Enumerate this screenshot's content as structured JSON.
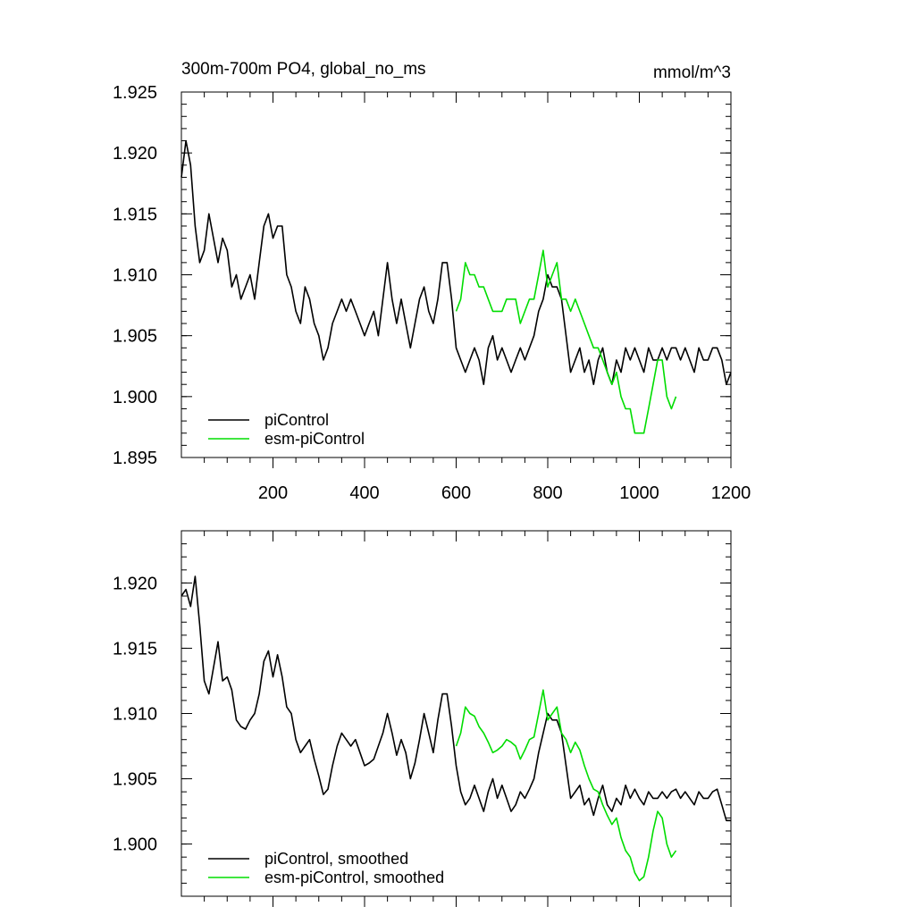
{
  "chart_data": [
    {
      "type": "line",
      "title": "300m-700m PO4, global_no_ms",
      "units": "mmol/m^3",
      "xlim": [
        0,
        1200
      ],
      "ylim": [
        1.895,
        1.925
      ],
      "xticks": [
        200,
        400,
        600,
        800,
        1000,
        1200
      ],
      "xtick_labels": [
        "200",
        "400",
        "600",
        "800",
        "1000",
        "1200"
      ],
      "yticks": [
        1.895,
        1.9,
        1.905,
        1.91,
        1.915,
        1.92,
        1.925
      ],
      "ytick_labels": [
        "1.895",
        "1.900",
        "1.905",
        "1.910",
        "1.915",
        "1.920",
        "1.925"
      ],
      "legend_position": "bottom-left",
      "series": [
        {
          "name": "piControl",
          "color": "#000000",
          "x": [
            0,
            10,
            20,
            30,
            40,
            50,
            60,
            70,
            80,
            90,
            100,
            110,
            120,
            130,
            140,
            150,
            160,
            170,
            180,
            190,
            200,
            210,
            220,
            230,
            240,
            250,
            260,
            270,
            280,
            290,
            300,
            310,
            320,
            330,
            340,
            350,
            360,
            370,
            380,
            390,
            400,
            410,
            420,
            430,
            440,
            450,
            460,
            470,
            480,
            490,
            500,
            510,
            520,
            530,
            540,
            550,
            560,
            570,
            580,
            590,
            600,
            610,
            620,
            630,
            640,
            650,
            660,
            670,
            680,
            690,
            700,
            710,
            720,
            730,
            740,
            750,
            760,
            770,
            780,
            790,
            800,
            810,
            820,
            830,
            840,
            850,
            860,
            870,
            880,
            890,
            900,
            910,
            920,
            930,
            940,
            950,
            960,
            970,
            980,
            990,
            1000,
            1010,
            1020,
            1030,
            1040,
            1050,
            1060,
            1070,
            1080,
            1090,
            1100,
            1110,
            1120,
            1130,
            1140,
            1150,
            1160,
            1170,
            1180,
            1190,
            1200
          ],
          "y": [
            1.918,
            1.921,
            1.919,
            1.914,
            1.911,
            1.912,
            1.915,
            1.913,
            1.911,
            1.913,
            1.912,
            1.909,
            1.91,
            1.908,
            1.909,
            1.91,
            1.908,
            1.911,
            1.914,
            1.915,
            1.913,
            1.914,
            1.914,
            1.91,
            1.909,
            1.907,
            1.906,
            1.909,
            1.908,
            1.906,
            1.905,
            1.903,
            1.904,
            1.906,
            1.907,
            1.908,
            1.907,
            1.908,
            1.907,
            1.906,
            1.905,
            1.906,
            1.907,
            1.905,
            1.908,
            1.911,
            1.908,
            1.906,
            1.908,
            1.906,
            1.904,
            1.906,
            1.908,
            1.909,
            1.907,
            1.906,
            1.908,
            1.911,
            1.911,
            1.908,
            1.904,
            1.903,
            1.902,
            1.903,
            1.904,
            1.903,
            1.901,
            1.904,
            1.905,
            1.903,
            1.904,
            1.903,
            1.902,
            1.903,
            1.904,
            1.903,
            1.904,
            1.905,
            1.907,
            1.908,
            1.91,
            1.909,
            1.909,
            1.908,
            1.905,
            1.902,
            1.903,
            1.904,
            1.902,
            1.903,
            1.901,
            1.903,
            1.904,
            1.902,
            1.901,
            1.903,
            1.902,
            1.904,
            1.903,
            1.904,
            1.903,
            1.902,
            1.904,
            1.903,
            1.903,
            1.904,
            1.903,
            1.904,
            1.904,
            1.903,
            1.904,
            1.903,
            1.902,
            1.904,
            1.903,
            1.903,
            1.904,
            1.904,
            1.903,
            1.901,
            1.902
          ]
        },
        {
          "name": "esm-piControl",
          "color": "#00dd00",
          "x": [
            600,
            610,
            620,
            630,
            640,
            650,
            660,
            670,
            680,
            690,
            700,
            710,
            720,
            730,
            740,
            750,
            760,
            770,
            780,
            790,
            800,
            810,
            820,
            830,
            840,
            850,
            860,
            870,
            880,
            890,
            900,
            910,
            920,
            930,
            940,
            950,
            960,
            970,
            980,
            990,
            1000,
            1010,
            1020,
            1030,
            1040,
            1050,
            1060,
            1070,
            1080
          ],
          "y": [
            1.907,
            1.908,
            1.911,
            1.91,
            1.91,
            1.909,
            1.909,
            1.908,
            1.907,
            1.907,
            1.907,
            1.908,
            1.908,
            1.908,
            1.906,
            1.907,
            1.908,
            1.908,
            1.91,
            1.912,
            1.909,
            1.91,
            1.911,
            1.908,
            1.908,
            1.907,
            1.908,
            1.907,
            1.906,
            1.905,
            1.904,
            1.904,
            1.903,
            1.902,
            1.901,
            1.902,
            1.9,
            1.899,
            1.899,
            1.897,
            1.897,
            1.897,
            1.899,
            1.901,
            1.903,
            1.903,
            1.9,
            1.899,
            1.9
          ]
        }
      ]
    },
    {
      "type": "line",
      "xlim": [
        0,
        1200
      ],
      "ylim": [
        1.896,
        1.924
      ],
      "xticks": [
        200,
        400,
        600,
        800,
        1000,
        1200
      ],
      "yticks": [
        1.9,
        1.905,
        1.91,
        1.915,
        1.92
      ],
      "ytick_labels": [
        "1.900",
        "1.905",
        "1.910",
        "1.915",
        "1.920"
      ],
      "legend_position": "bottom-left",
      "series": [
        {
          "name": "piControl, smoothed",
          "color": "#000000",
          "x": [
            0,
            10,
            20,
            30,
            40,
            50,
            60,
            70,
            80,
            90,
            100,
            110,
            120,
            130,
            140,
            150,
            160,
            170,
            180,
            190,
            200,
            210,
            220,
            230,
            240,
            250,
            260,
            270,
            280,
            290,
            300,
            310,
            320,
            330,
            340,
            350,
            360,
            370,
            380,
            390,
            400,
            410,
            420,
            430,
            440,
            450,
            460,
            470,
            480,
            490,
            500,
            510,
            520,
            530,
            540,
            550,
            560,
            570,
            580,
            590,
            600,
            610,
            620,
            630,
            640,
            650,
            660,
            670,
            680,
            690,
            700,
            710,
            720,
            730,
            740,
            750,
            760,
            770,
            780,
            790,
            800,
            810,
            820,
            830,
            840,
            850,
            860,
            870,
            880,
            890,
            900,
            910,
            920,
            930,
            940,
            950,
            960,
            970,
            980,
            990,
            1000,
            1010,
            1020,
            1030,
            1040,
            1050,
            1060,
            1070,
            1080,
            1090,
            1100,
            1110,
            1120,
            1130,
            1140,
            1150,
            1160,
            1170,
            1180,
            1190,
            1200
          ],
          "y": [
            1.919,
            1.9195,
            1.9182,
            1.9205,
            1.9168,
            1.9125,
            1.9115,
            1.9135,
            1.9155,
            1.9125,
            1.9128,
            1.9118,
            1.9095,
            1.909,
            1.9088,
            1.9095,
            1.91,
            1.9115,
            1.914,
            1.9148,
            1.9128,
            1.9145,
            1.9128,
            1.9105,
            1.91,
            1.908,
            1.907,
            1.9075,
            1.908,
            1.9065,
            1.9052,
            1.9038,
            1.9042,
            1.906,
            1.9075,
            1.9085,
            1.908,
            1.9075,
            1.908,
            1.907,
            1.906,
            1.9062,
            1.9065,
            1.9075,
            1.9085,
            1.91,
            1.9085,
            1.9068,
            1.908,
            1.907,
            1.905,
            1.9062,
            1.908,
            1.91,
            1.9085,
            1.907,
            1.9095,
            1.9115,
            1.9115,
            1.909,
            1.906,
            1.904,
            1.903,
            1.9035,
            1.9045,
            1.9035,
            1.9025,
            1.904,
            1.905,
            1.9035,
            1.9045,
            1.9035,
            1.9025,
            1.903,
            1.904,
            1.9035,
            1.9042,
            1.905,
            1.907,
            1.9085,
            1.91,
            1.9095,
            1.9095,
            1.9085,
            1.906,
            1.9035,
            1.904,
            1.9045,
            1.903,
            1.9035,
            1.9022,
            1.9035,
            1.9045,
            1.903,
            1.9025,
            1.9035,
            1.903,
            1.9045,
            1.9035,
            1.9042,
            1.9035,
            1.903,
            1.904,
            1.9035,
            1.9035,
            1.904,
            1.9035,
            1.904,
            1.9042,
            1.9035,
            1.904,
            1.9035,
            1.903,
            1.904,
            1.9035,
            1.9035,
            1.904,
            1.9042,
            1.903,
            1.9018,
            1.9018
          ]
        },
        {
          "name": "esm-piControl, smoothed",
          "color": "#00dd00",
          "x": [
            600,
            610,
            620,
            630,
            640,
            650,
            660,
            670,
            680,
            690,
            700,
            710,
            720,
            730,
            740,
            750,
            760,
            770,
            780,
            790,
            800,
            810,
            820,
            830,
            840,
            850,
            860,
            870,
            880,
            890,
            900,
            910,
            920,
            930,
            940,
            950,
            960,
            970,
            980,
            990,
            1000,
            1010,
            1020,
            1030,
            1040,
            1050,
            1060,
            1070,
            1080
          ],
          "y": [
            1.9075,
            1.9085,
            1.9105,
            1.91,
            1.9098,
            1.909,
            1.9085,
            1.9078,
            1.907,
            1.9072,
            1.9075,
            1.908,
            1.9078,
            1.9075,
            1.9065,
            1.9072,
            1.908,
            1.9082,
            1.91,
            1.9118,
            1.9095,
            1.91,
            1.9105,
            1.9085,
            1.908,
            1.907,
            1.9078,
            1.9072,
            1.906,
            1.905,
            1.9042,
            1.904,
            1.903,
            1.9022,
            1.9015,
            1.902,
            1.9005,
            1.8995,
            1.899,
            1.8978,
            1.8972,
            1.8975,
            1.899,
            1.901,
            1.9025,
            1.902,
            1.9,
            1.899,
            1.8995
          ]
        }
      ]
    }
  ]
}
